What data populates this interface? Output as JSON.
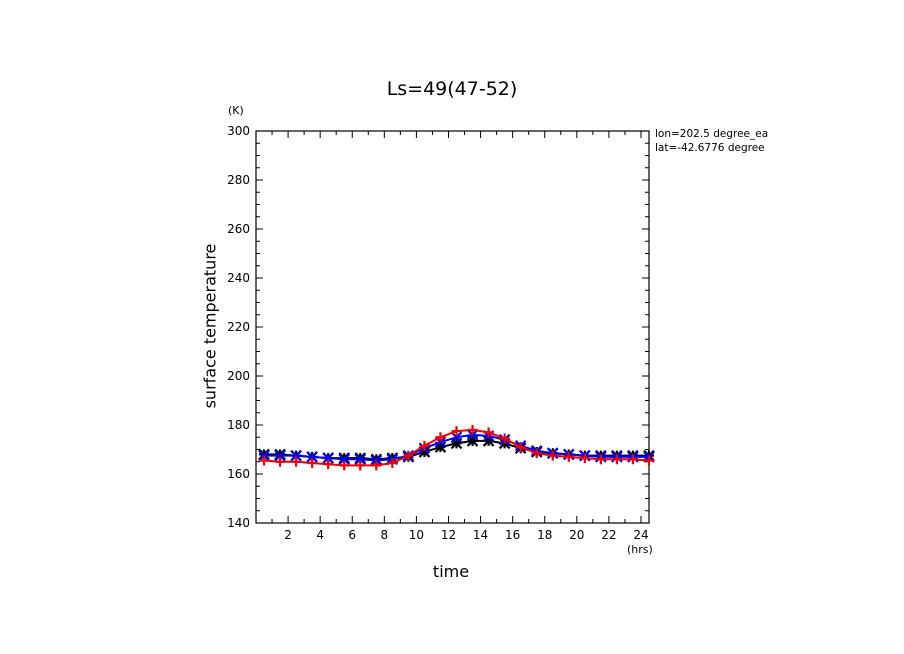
{
  "chart_data": {
    "type": "line",
    "title": "Ls=49(47-52)",
    "xlabel": "time",
    "ylabel": "surface temperature",
    "x_unit": "(hrs)",
    "y_unit": "(K)",
    "annotations": [
      "lon=202.5 degree_ea",
      "lat=-42.6776 degree"
    ],
    "xlim": [
      0,
      24.5
    ],
    "ylim": [
      140,
      300
    ],
    "xticks": [
      2,
      4,
      6,
      8,
      10,
      12,
      14,
      16,
      18,
      20,
      22,
      24
    ],
    "yticks": [
      140,
      160,
      180,
      200,
      220,
      240,
      260,
      280,
      300
    ],
    "series": [
      {
        "color": "#000000",
        "marker": "asterisk",
        "x": [
          0.5,
          1.5,
          2.5,
          3.5,
          4.5,
          5.5,
          6.5,
          7.5,
          8.5,
          9.5,
          10.5,
          11.5,
          12.5,
          13.5,
          14.5,
          15.5,
          16.5,
          17.5,
          18.5,
          19.5,
          20.5,
          21.5,
          22.5,
          23.5,
          24.5
        ],
        "y": [
          168,
          168,
          167.5,
          167,
          166.5,
          166.5,
          166.5,
          166,
          166.5,
          167,
          169,
          171,
          172.5,
          173.5,
          173.5,
          172.5,
          170.5,
          169,
          168.5,
          168,
          167.5,
          167.5,
          167.5,
          167.5,
          167.5
        ]
      },
      {
        "color": "#0000ee",
        "marker": "x",
        "x": [
          0.5,
          1.5,
          2.5,
          3.5,
          4.5,
          5.5,
          6.5,
          7.5,
          8.5,
          9.5,
          10.5,
          11.5,
          12.5,
          13.5,
          14.5,
          15.5,
          16.5,
          17.5,
          18.5,
          19.5,
          20.5,
          21.5,
          22.5,
          23.5,
          24.5
        ],
        "y": [
          167.5,
          167.5,
          167.5,
          167,
          166.5,
          166,
          166,
          165.5,
          166,
          167.5,
          170.5,
          173,
          175,
          176,
          175.5,
          174,
          171.5,
          169.5,
          168.5,
          168,
          167.5,
          167,
          167,
          167,
          167
        ]
      },
      {
        "color": "#ee0000",
        "marker": "plus",
        "x": [
          0.5,
          1.5,
          2.5,
          3.5,
          4.5,
          5.5,
          6.5,
          7.5,
          8.5,
          9.5,
          10.5,
          11.5,
          12.5,
          13.5,
          14.5,
          15.5,
          16.5,
          17.5,
          18.5,
          19.5,
          20.5,
          21.5,
          22.5,
          23.5,
          24.5
        ],
        "y": [
          165.5,
          165,
          165,
          164.5,
          164,
          163.5,
          163.5,
          163.5,
          164.5,
          167.5,
          171.5,
          175,
          177.5,
          178,
          177,
          174.5,
          171,
          168.5,
          167.5,
          167,
          166.5,
          166,
          166,
          166,
          165.5
        ]
      }
    ]
  }
}
